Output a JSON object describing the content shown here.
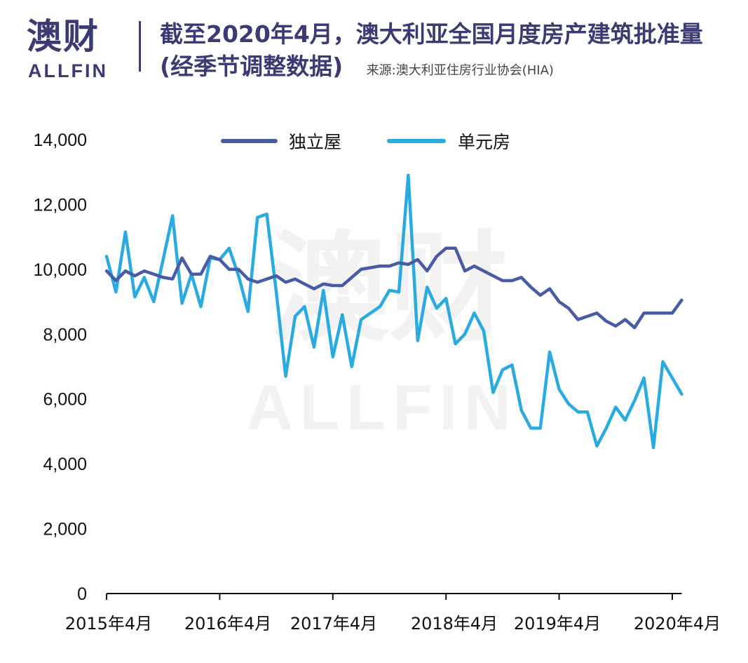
{
  "logo": {
    "cn": "澳财",
    "en": "ALLFIN"
  },
  "title": "截至2020年4月，澳大利亚全国月度房产建筑批准量(经季节调整数据)",
  "source": "来源:澳大利亚住房行业协会(HIA)",
  "watermark": {
    "cn": "澳财",
    "en": "ALLFIN"
  },
  "colors": {
    "brand": "#3b3a73",
    "detached": "#4a5ba6",
    "apartment": "#29abe2"
  },
  "chart_data": {
    "type": "line",
    "ylim": [
      0,
      14000
    ],
    "y_ticks": [
      "0",
      "2,000",
      "4,000",
      "6,000",
      "8,000",
      "10,000",
      "12,000",
      "14,000"
    ],
    "x_tick_labels": [
      "2015年4月",
      "2016年4月",
      "2017年4月",
      "2018年4月",
      "2019年4月",
      "2020年4月"
    ],
    "grid": false,
    "legend_position": "top",
    "x": [
      "2015-04",
      "2015-05",
      "2015-06",
      "2015-07",
      "2015-08",
      "2015-09",
      "2015-10",
      "2015-11",
      "2015-12",
      "2016-01",
      "2016-02",
      "2016-03",
      "2016-04",
      "2016-05",
      "2016-06",
      "2016-07",
      "2016-08",
      "2016-09",
      "2016-10",
      "2016-11",
      "2016-12",
      "2017-01",
      "2017-02",
      "2017-03",
      "2017-04",
      "2017-05",
      "2017-06",
      "2017-07",
      "2017-08",
      "2017-09",
      "2017-10",
      "2017-11",
      "2017-12",
      "2018-01",
      "2018-02",
      "2018-03",
      "2018-04",
      "2018-05",
      "2018-06",
      "2018-07",
      "2018-08",
      "2018-09",
      "2018-10",
      "2018-11",
      "2018-12",
      "2019-01",
      "2019-02",
      "2019-03",
      "2019-04",
      "2019-05",
      "2019-06",
      "2019-07",
      "2019-08",
      "2019-09",
      "2019-10",
      "2019-11",
      "2019-12",
      "2020-01",
      "2020-02",
      "2020-03",
      "2020-04",
      "2020-05"
    ],
    "series": [
      {
        "name": "独立屋",
        "color": "#4a5ba6",
        "values": [
          9950,
          9650,
          9950,
          9800,
          9950,
          9850,
          9750,
          9700,
          10350,
          9850,
          9850,
          10400,
          10300,
          10000,
          10000,
          9700,
          9600,
          9700,
          9800,
          9600,
          9700,
          9550,
          9400,
          9550,
          9500,
          9500,
          9750,
          10000,
          10050,
          10100,
          10100,
          10200,
          10150,
          10300,
          9950,
          10400,
          10650,
          10650,
          9950,
          10100,
          9950,
          9800,
          9650,
          9650,
          9750,
          9450,
          9200,
          9400,
          9000,
          8800,
          8450,
          8550,
          8650,
          8400,
          8250,
          8450,
          8200,
          8650,
          8650,
          8650,
          8650,
          9050
        ]
      },
      {
        "name": "单元房",
        "color": "#29abe2",
        "values": [
          10400,
          9300,
          11150,
          9150,
          9750,
          9000,
          10300,
          11650,
          8950,
          9850,
          8850,
          10350,
          10300,
          10650,
          9800,
          8700,
          11600,
          11700,
          9300,
          6700,
          8550,
          8850,
          7600,
          9350,
          7300,
          8600,
          7000,
          8450,
          8650,
          8850,
          9350,
          9300,
          12900,
          7800,
          9450,
          8800,
          9100,
          7700,
          8000,
          8650,
          8100,
          6200,
          6900,
          7050,
          5650,
          5100,
          5100,
          7450,
          6300,
          5850,
          5600,
          5600,
          4550,
          5100,
          5750,
          5350,
          5950,
          6650,
          4500,
          7150,
          6650,
          6150
        ]
      }
    ]
  }
}
